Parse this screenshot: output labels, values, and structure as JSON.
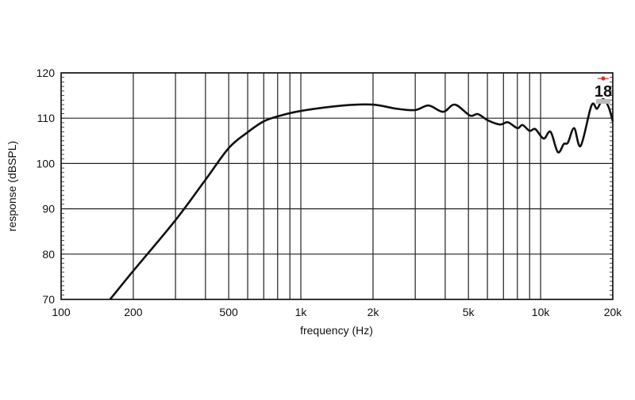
{
  "chart_data": {
    "type": "line",
    "title": "",
    "xlabel": "frequency (Hz)",
    "ylabel": "response (dBSPL)",
    "x_scale": "log",
    "xlim": [
      100,
      20000
    ],
    "ylim": [
      70,
      120
    ],
    "grid": true,
    "x_ticks": [
      {
        "v": 100,
        "label": "100"
      },
      {
        "v": 200,
        "label": "200"
      },
      {
        "v": 500,
        "label": "500"
      },
      {
        "v": 1000,
        "label": "1k"
      },
      {
        "v": 2000,
        "label": "2k"
      },
      {
        "v": 5000,
        "label": "5k"
      },
      {
        "v": 10000,
        "label": "10k"
      },
      {
        "v": 20000,
        "label": "20k"
      }
    ],
    "y_ticks": [
      {
        "v": 70,
        "label": "70"
      },
      {
        "v": 80,
        "label": "80"
      },
      {
        "v": 90,
        "label": "90"
      },
      {
        "v": 100,
        "label": "100"
      },
      {
        "v": 110,
        "label": "110"
      },
      {
        "v": 120,
        "label": "120"
      }
    ],
    "x_gridlines": [
      100,
      200,
      300,
      400,
      500,
      600,
      700,
      800,
      900,
      1000,
      2000,
      3000,
      4000,
      5000,
      6000,
      7000,
      8000,
      9000,
      10000,
      20000
    ],
    "series": [
      {
        "color": "#111111",
        "x": [
          160,
          200,
          300,
          400,
          500,
          600,
          700,
          800,
          1000,
          1500,
          2000,
          2500,
          3000,
          3410,
          3920,
          4390,
          5070,
          5470,
          6040,
          6770,
          7300,
          8000,
          8400,
          9000,
          9500,
          10300,
          11000,
          11800,
          12500,
          13000,
          13800,
          14700,
          16300,
          17200,
          18200,
          19200,
          20000
        ],
        "y": [
          70,
          76.3,
          87.5,
          96.4,
          103.4,
          106.9,
          109.3,
          110.4,
          111.6,
          112.8,
          113,
          112.1,
          111.8,
          112.8,
          111.4,
          113,
          110.6,
          110.9,
          109.5,
          108.6,
          109.1,
          107.8,
          108.5,
          107.2,
          107.6,
          105.5,
          107,
          102.5,
          104.3,
          104.6,
          107.8,
          103.9,
          112.8,
          112.1,
          114.2,
          112.5,
          109.3
        ]
      }
    ]
  },
  "logo": {
    "text": "18",
    "star_color": "#e0302a"
  }
}
